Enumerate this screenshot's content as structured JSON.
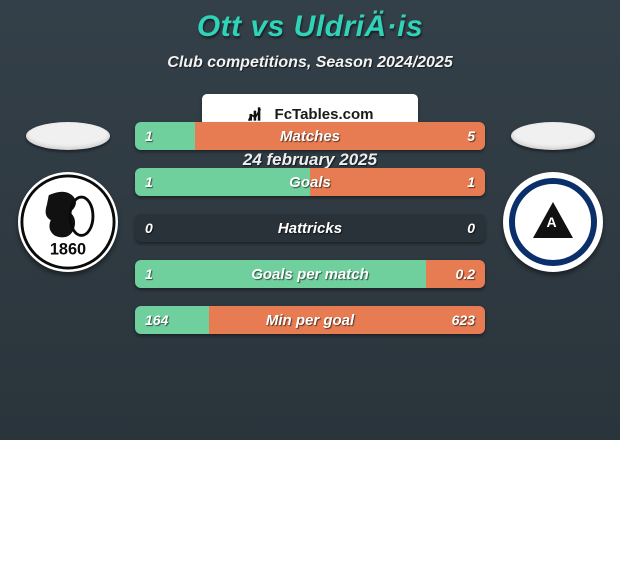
{
  "background_gradient": [
    "#344049",
    "#2a343b"
  ],
  "title": {
    "text": "Ott vs UldriÄ·is",
    "color": "#2fd3b8",
    "fontsize": 30
  },
  "subtitle": {
    "text": "Club competitions, Season 2024/2025",
    "color": "#f3f3f3",
    "fontsize": 16
  },
  "date": {
    "text": "24 february 2025",
    "color": "#eef0f0",
    "fontsize": 17
  },
  "players": {
    "left": {
      "flag_bg": "#f0f0f0",
      "crest_bg": "#ffffff",
      "crest_text": "1860",
      "crest_text_color": "#0c0c0c"
    },
    "right": {
      "flag_bg": "#f0f0f0",
      "crest_bg": "#ffffff",
      "crest_ring_color": "#0b2f6a",
      "crest_letter": "A"
    }
  },
  "bars": {
    "track_bg": "#293139",
    "left_fill_color": "#6fd09e",
    "right_fill_color": "#e77b51",
    "label_color": "#ffffff",
    "rows": [
      {
        "label": "Matches",
        "left": "1",
        "right": "5",
        "left_frac": 0.17,
        "right_frac": 0.83
      },
      {
        "label": "Goals",
        "left": "1",
        "right": "1",
        "left_frac": 0.5,
        "right_frac": 0.5
      },
      {
        "label": "Hattricks",
        "left": "0",
        "right": "0",
        "left_frac": 0.0,
        "right_frac": 0.0
      },
      {
        "label": "Goals per match",
        "left": "1",
        "right": "0.2",
        "left_frac": 0.83,
        "right_frac": 0.17
      },
      {
        "label": "Min per goal",
        "left": "164",
        "right": "623",
        "left_frac": 0.21,
        "right_frac": 0.79
      }
    ]
  },
  "brand": {
    "text": "FcTables.com",
    "bg": "#ffffff",
    "text_color": "#1a1a1a"
  }
}
